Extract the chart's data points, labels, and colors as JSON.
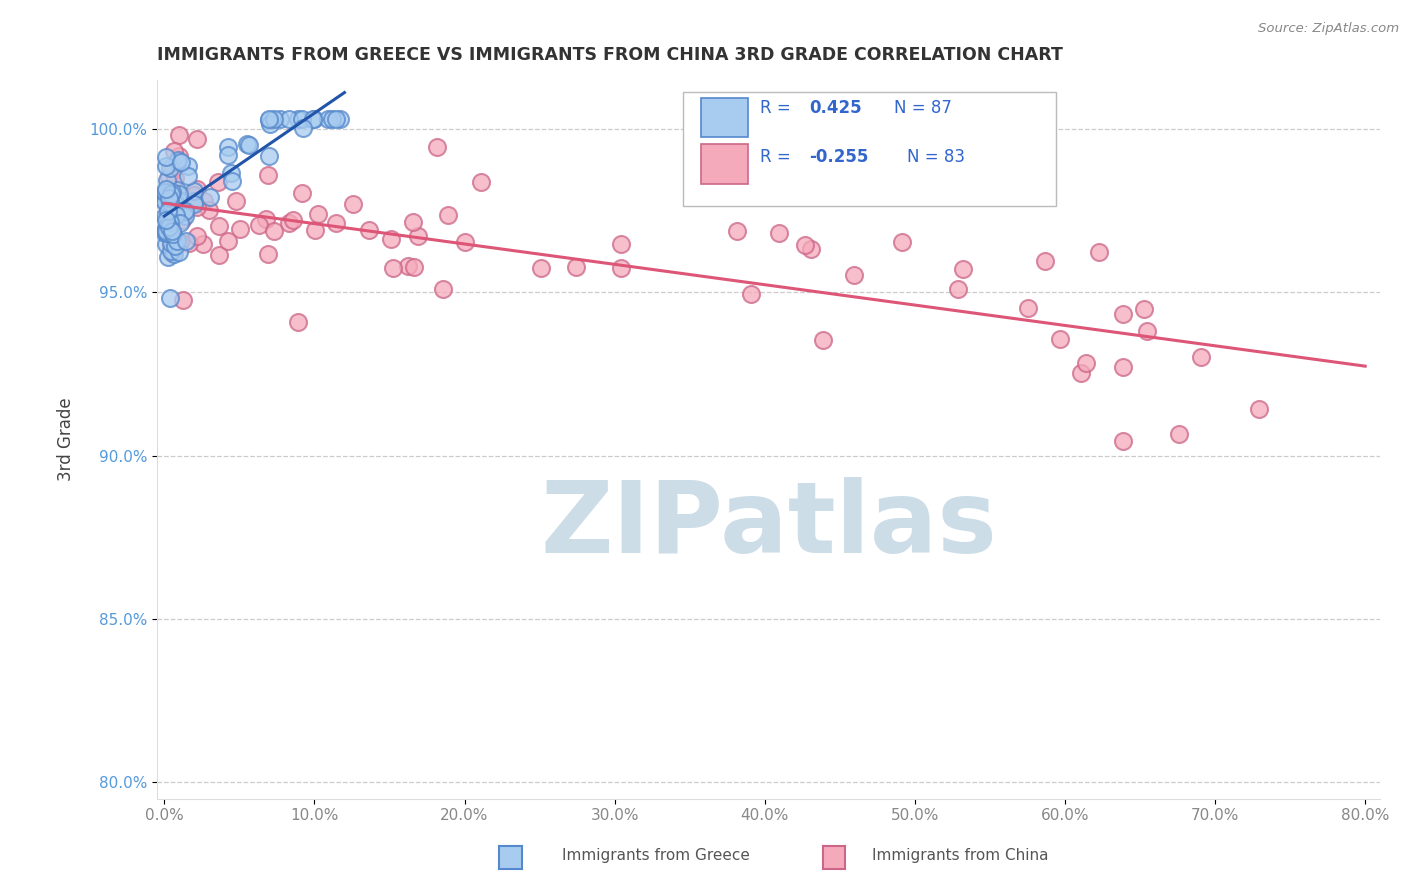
{
  "title": "IMMIGRANTS FROM GREECE VS IMMIGRANTS FROM CHINA 3RD GRADE CORRELATION CHART",
  "source": "Source: ZipAtlas.com",
  "ylabel_text": "3rd Grade",
  "xlim": [
    -0.5,
    81
  ],
  "ylim": [
    79.5,
    101.5
  ],
  "xticks": [
    0,
    10,
    20,
    30,
    40,
    50,
    60,
    70,
    80
  ],
  "yticks": [
    80,
    85,
    90,
    95,
    100
  ],
  "greece_color_fill": "#a8ccf0",
  "greece_color_edge": "#5588cc",
  "china_color_fill": "#f5aabb",
  "china_color_edge": "#cc6688",
  "greece_line_color": "#2255aa",
  "china_line_color": "#dd5577",
  "watermark": "ZIPatlas",
  "watermark_color": "#ccdde8",
  "legend_R_greece": "0.425",
  "legend_N_greece": "87",
  "legend_R_china": "-0.255",
  "legend_N_china": "83",
  "legend_text_color": "#3366cc",
  "bottom_label_greece": "Immigrants from Greece",
  "bottom_label_china": "Immigrants from China",
  "ytick_color": "#5599dd",
  "xtick_color": "#888888",
  "title_color": "#333333",
  "source_color": "#888888"
}
